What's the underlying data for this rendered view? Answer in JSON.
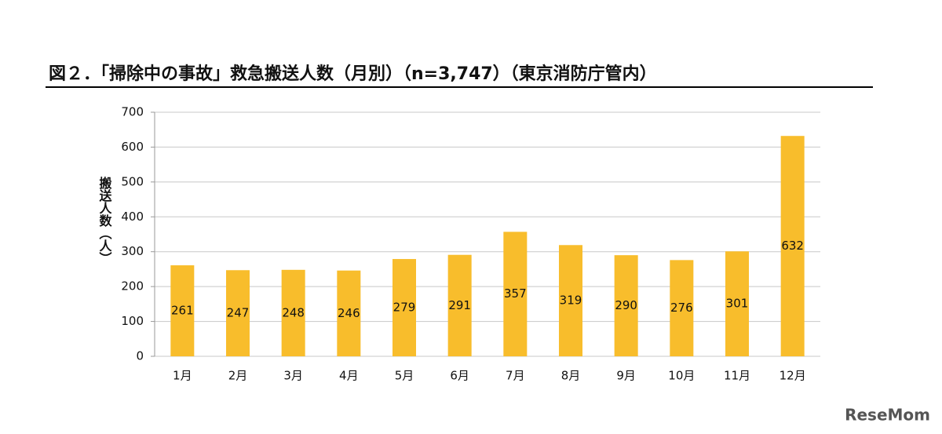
{
  "chart_data": {
    "type": "bar",
    "title": "図２．「掃除中の事故」救急搬送人数（月別）（n=3,747）（東京消防庁管内）",
    "y_label": "搬送人数（人）",
    "categories": [
      "1月",
      "2月",
      "3月",
      "4月",
      "5月",
      "6月",
      "7月",
      "8月",
      "9月",
      "10月",
      "11月",
      "12月"
    ],
    "values": [
      261,
      247,
      248,
      246,
      279,
      291,
      357,
      319,
      290,
      276,
      301,
      632
    ],
    "color": "#f8bd2c",
    "ylim": [
      0,
      700
    ],
    "yticks": [
      0,
      100,
      200,
      300,
      400,
      500,
      600,
      700
    ],
    "grid": true
  },
  "watermark": "ReseMom"
}
